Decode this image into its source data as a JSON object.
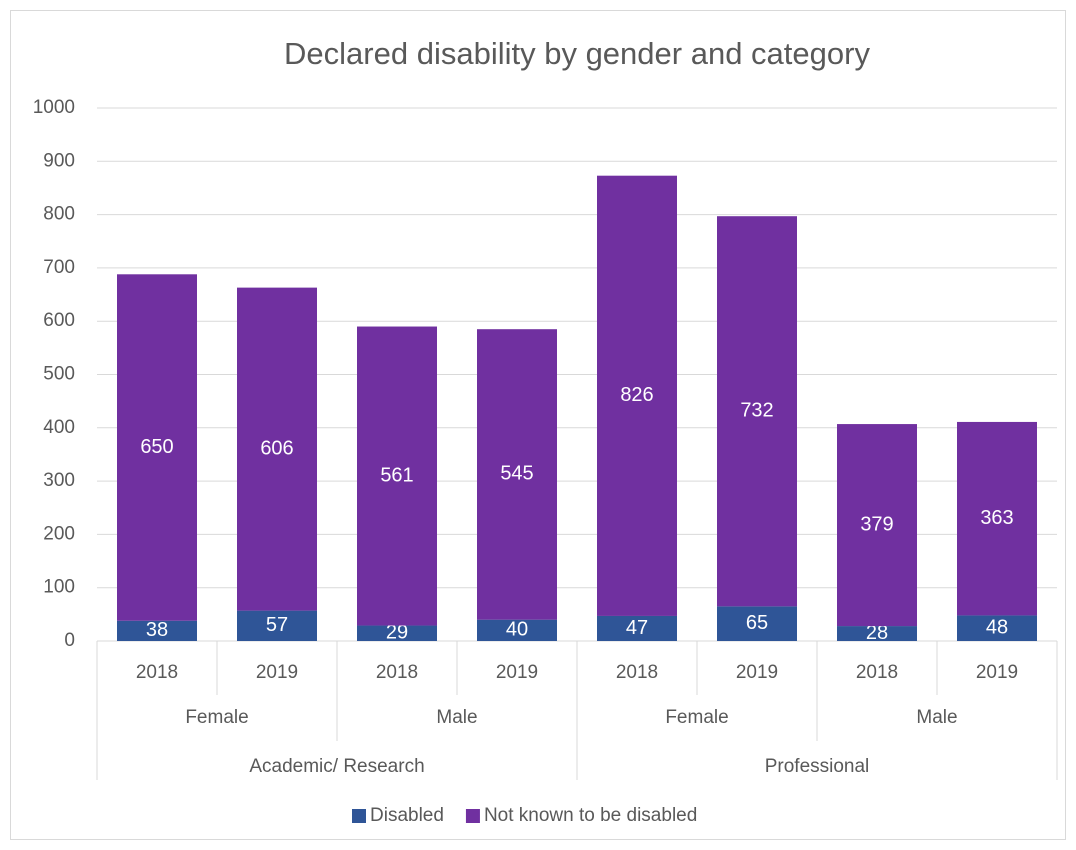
{
  "chart_data": {
    "type": "stacked_bar",
    "title": "Declared disability by gender and category",
    "categories": [
      [
        "Academic/ Research",
        "Female",
        "2018"
      ],
      [
        "Academic/ Research",
        "Female",
        "2019"
      ],
      [
        "Academic/ Research",
        "Male",
        "2018"
      ],
      [
        "Academic/ Research",
        "Male",
        "2019"
      ],
      [
        "Professional",
        "Female",
        "2018"
      ],
      [
        "Professional",
        "Female",
        "2019"
      ],
      [
        "Professional",
        "Male",
        "2018"
      ],
      [
        "Professional",
        "Male",
        "2019"
      ]
    ],
    "series": [
      {
        "name": "Disabled",
        "color": "#2f5597",
        "values": [
          38,
          57,
          29,
          40,
          47,
          65,
          28,
          48
        ]
      },
      {
        "name": "Not known to be disabled",
        "color": "#7030a0",
        "values": [
          650,
          606,
          561,
          545,
          826,
          732,
          379,
          363
        ]
      }
    ],
    "ylim": [
      0,
      1000
    ],
    "yticks": [
      0,
      100,
      200,
      300,
      400,
      500,
      600,
      700,
      800,
      900,
      1000
    ],
    "grid": true,
    "legend": "bottom",
    "data_labels": true
  }
}
